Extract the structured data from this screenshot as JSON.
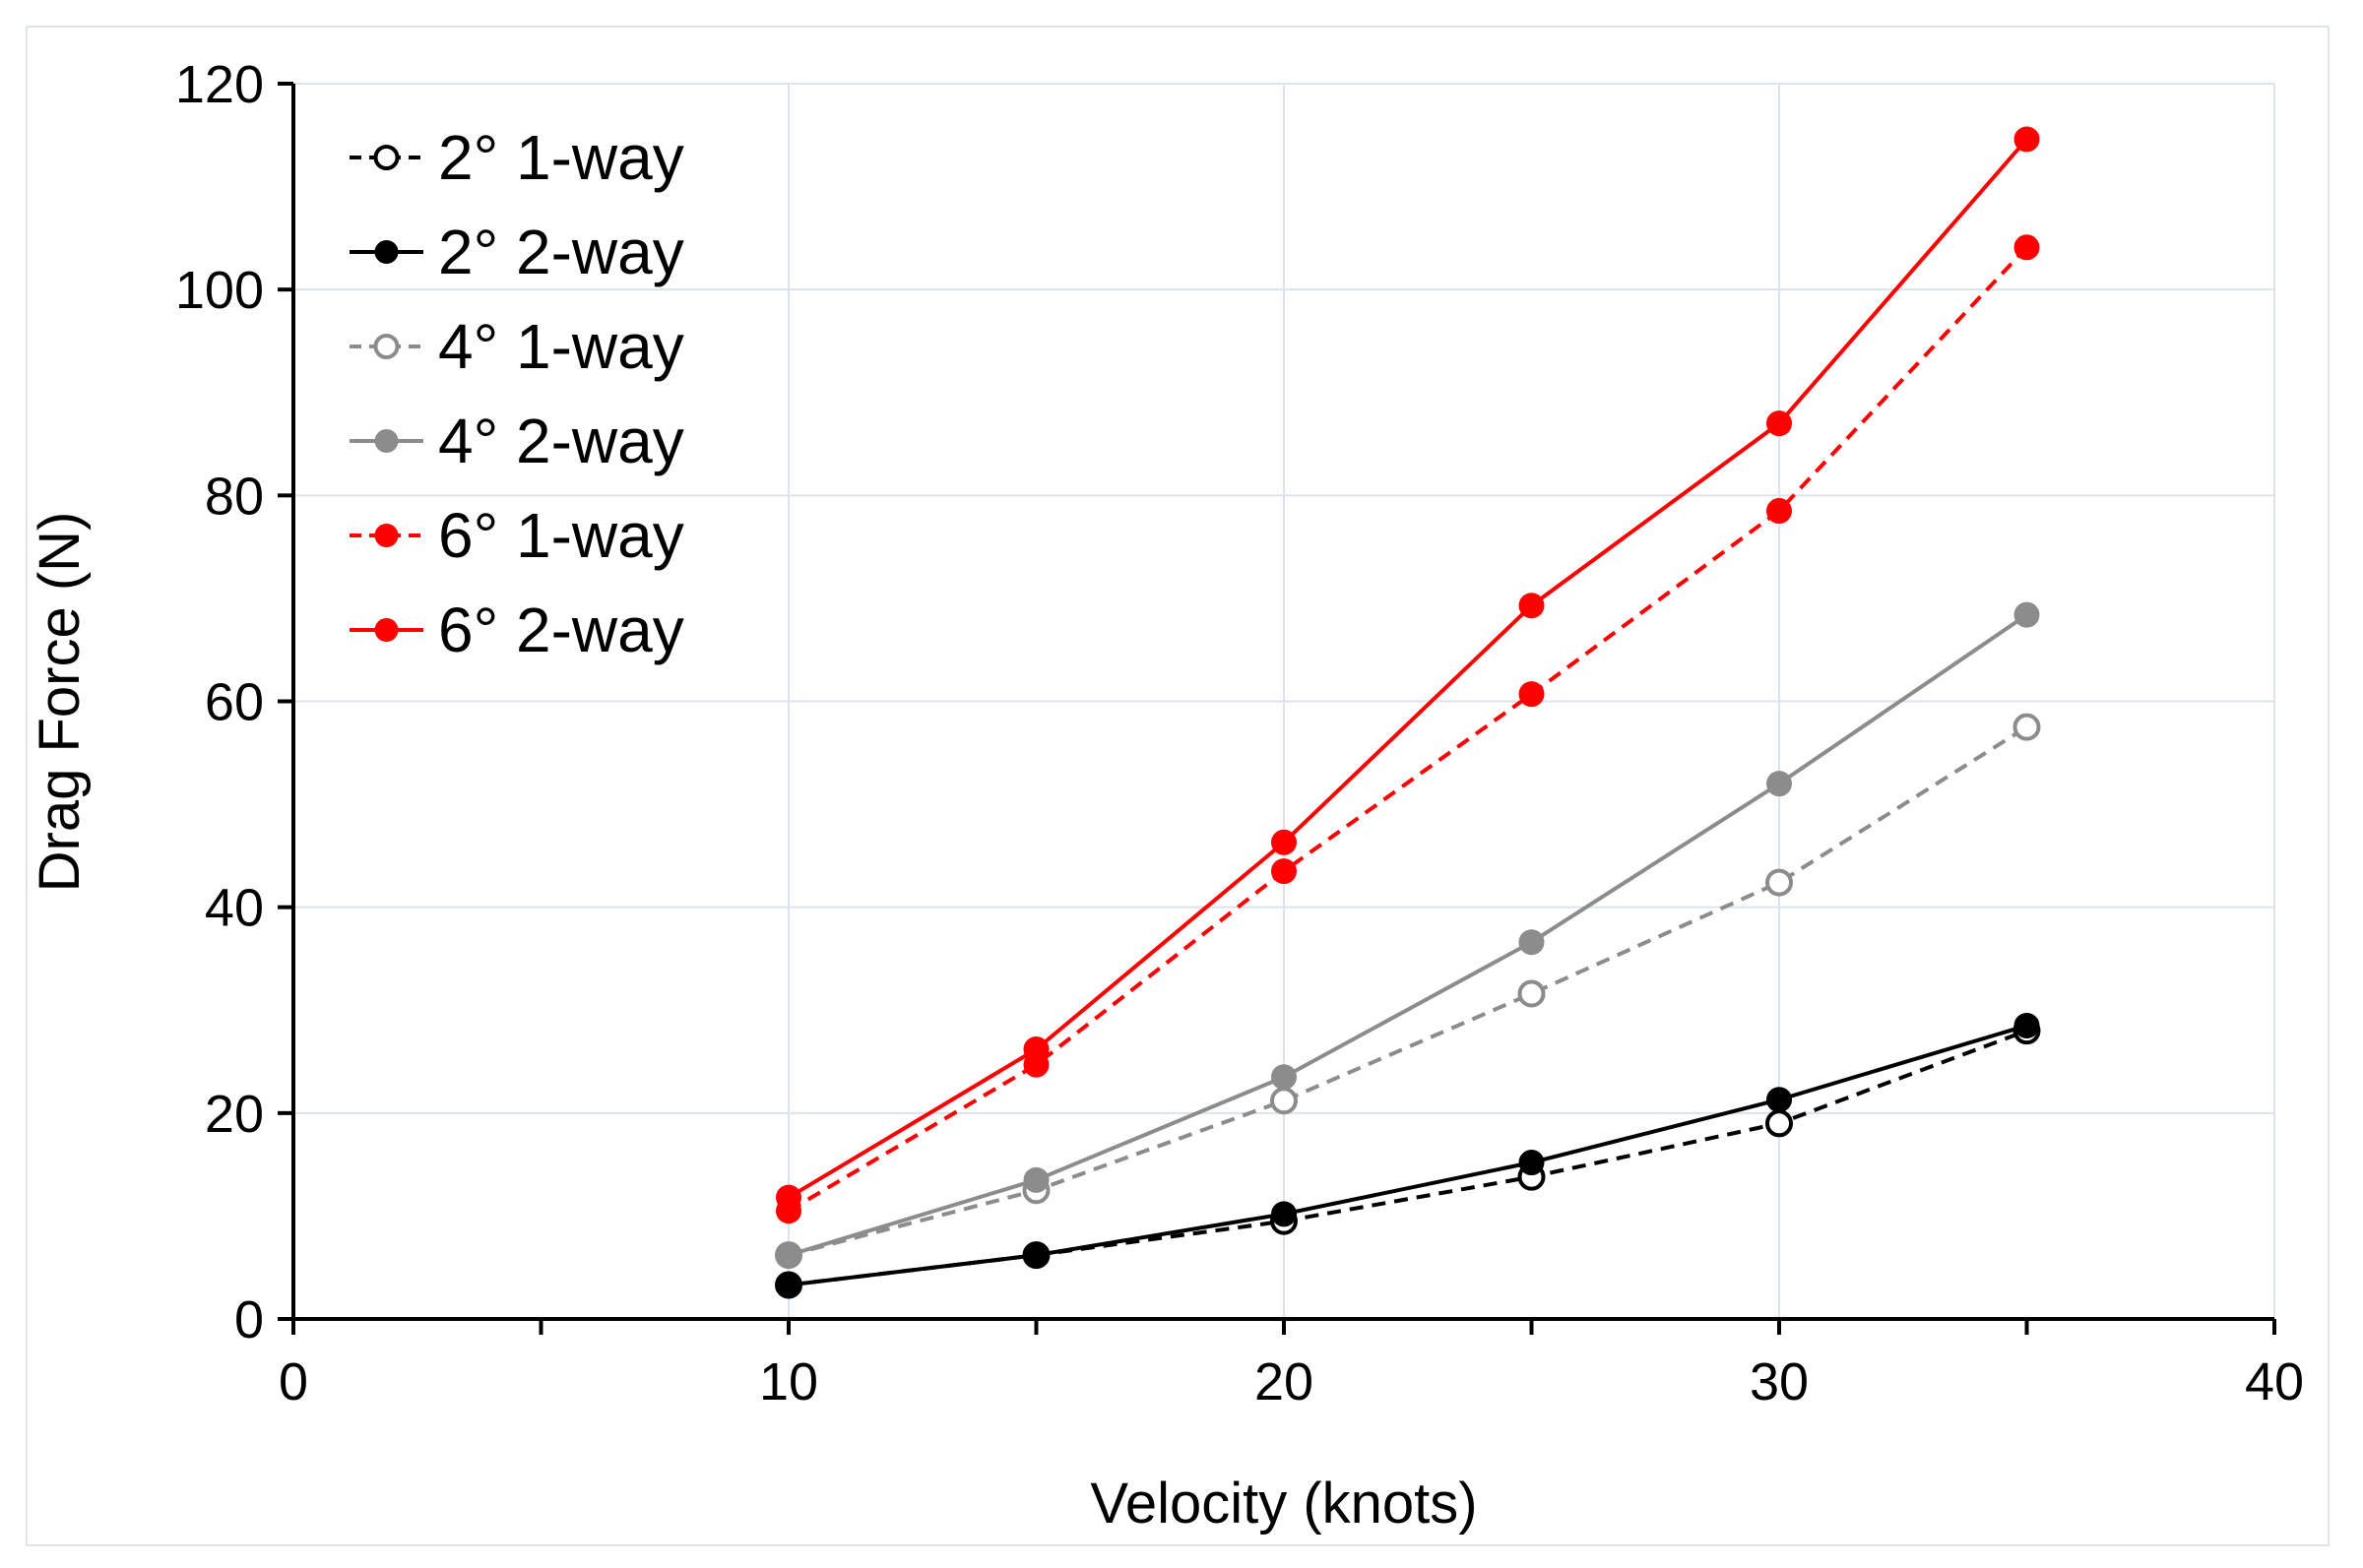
{
  "chart_data": {
    "type": "line",
    "title": "",
    "xlabel": "Velocity (knots)",
    "ylabel": "Drag Force (N)",
    "xlim": [
      0,
      40
    ],
    "ylim": [
      0,
      120
    ],
    "xticks": [
      0,
      10,
      20,
      30,
      40
    ],
    "yticks": [
      0,
      20,
      40,
      60,
      80,
      100,
      120
    ],
    "grid": true,
    "legend_position": "top-left",
    "x": [
      10,
      15,
      20,
      25,
      30,
      35
    ],
    "series": [
      {
        "name": "2° 1-way",
        "values": [
          3.3,
          6.2,
          9.5,
          13.8,
          19.0,
          28.0
        ],
        "color": "#000000",
        "dashed": true,
        "marker": "open"
      },
      {
        "name": "2° 2-way",
        "values": [
          3.3,
          6.2,
          10.2,
          15.2,
          21.3,
          28.5
        ],
        "color": "#000000",
        "dashed": false,
        "marker": "filled"
      },
      {
        "name": "4° 1-way",
        "values": [
          6.2,
          12.5,
          21.2,
          31.6,
          42.4,
          57.5
        ],
        "color": "#8c8c8c",
        "dashed": true,
        "marker": "open"
      },
      {
        "name": "4° 2-way",
        "values": [
          6.2,
          13.5,
          23.5,
          36.6,
          52.0,
          68.4
        ],
        "color": "#8c8c8c",
        "dashed": false,
        "marker": "filled"
      },
      {
        "name": "6° 1-way",
        "values": [
          10.5,
          24.7,
          43.5,
          60.7,
          78.5,
          104.1
        ],
        "color": "#ff0000",
        "dashed": true,
        "marker": "filled"
      },
      {
        "name": "6° 2-way",
        "values": [
          11.8,
          26.2,
          46.3,
          69.3,
          87.0,
          114.6
        ],
        "color": "#ff0000",
        "dashed": false,
        "marker": "filled"
      }
    ]
  }
}
